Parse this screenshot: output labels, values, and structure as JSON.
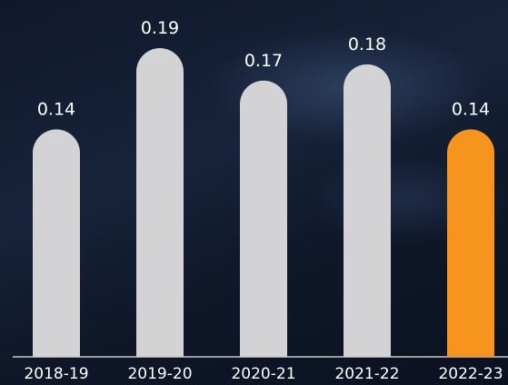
{
  "chart_data": {
    "type": "bar",
    "title": "",
    "xlabel": "",
    "ylabel": "",
    "categories": [
      "2018-19",
      "2019-20",
      "2020-21",
      "2021-22",
      "2022-23"
    ],
    "values": [
      0.14,
      0.19,
      0.17,
      0.18,
      0.14
    ],
    "value_labels": [
      "0.14",
      "0.19",
      "0.17",
      "0.18",
      "0.14"
    ],
    "ylim": [
      0,
      0.19
    ],
    "grid": false,
    "legend": "none",
    "highlight_index": 4,
    "colors": {
      "bar": "#d3d3d5",
      "highlight": "#f7941d",
      "axis": "#c8c8c8",
      "text": "#ffffff",
      "background": "#121b2e"
    }
  }
}
